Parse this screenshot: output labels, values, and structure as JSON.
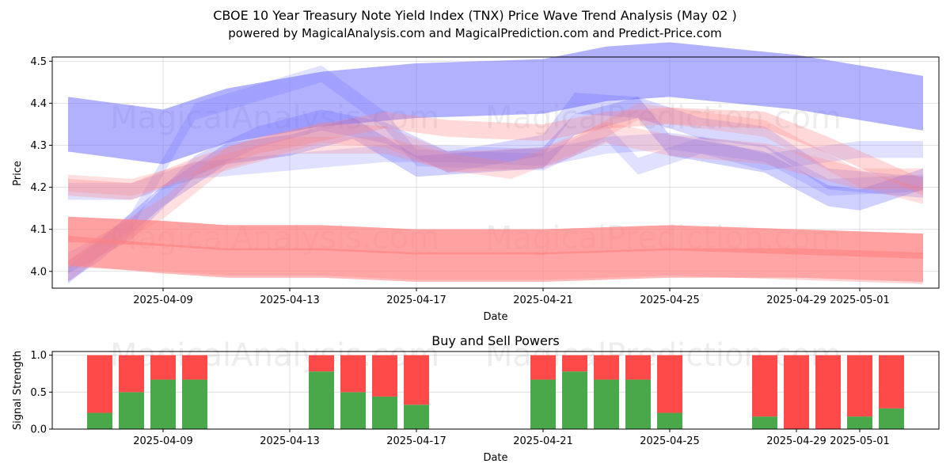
{
  "chart_data": [
    {
      "type": "area",
      "title": "CBOE 10 Year Treasury Note Yield Index (TNX) Price Wave Trend Analysis (May 02 )",
      "subtitle": "powered by MagicalAnalysis.com and MagicalPrediction.com and Predict-Price.com",
      "xlabel": "Date",
      "ylabel": "Price",
      "xlim": [
        "2025-04-05T12",
        "2025-05-03T12"
      ],
      "ylim": [
        3.96,
        4.51
      ],
      "grid": true,
      "x_ticks": [
        "2025-04-09",
        "2025-04-13",
        "2025-04-17",
        "2025-04-21",
        "2025-04-25",
        "2025-04-29",
        "2025-05-01"
      ],
      "y_ticks": [
        "4.0",
        "4.1",
        "4.2",
        "4.3",
        "4.4",
        "4.5"
      ],
      "watermarks": [
        "MagicalAnalysis.com",
        "MagicalPrediction.com",
        "MagicalAnalysis.com",
        "MagicalPrediction.com"
      ],
      "series": [
        {
          "name": "blue-wave-upper",
          "color": "#6464ff",
          "opacity": 0.5,
          "width": 0.13,
          "x": [
            "2025-04-06",
            "2025-04-08",
            "2025-04-09",
            "2025-04-11",
            "2025-04-14",
            "2025-04-17",
            "2025-04-21",
            "2025-04-23",
            "2025-04-25",
            "2025-04-29",
            "2025-05-03"
          ],
          "y": [
            4.35,
            4.33,
            4.32,
            4.37,
            4.41,
            4.43,
            4.44,
            4.47,
            4.48,
            4.45,
            4.4
          ]
        },
        {
          "name": "blue-wave-mid",
          "color": "#6464ff",
          "opacity": 0.3,
          "width": 0.05,
          "x": [
            "2025-04-06",
            "2025-04-07",
            "2025-04-09",
            "2025-04-11",
            "2025-04-13",
            "2025-04-15",
            "2025-04-17",
            "2025-04-19",
            "2025-04-21",
            "2025-04-22",
            "2025-04-24",
            "2025-04-25",
            "2025-04-28",
            "2025-04-30",
            "2025-05-01",
            "2025-05-03"
          ],
          "y": [
            4.0,
            4.05,
            4.18,
            4.28,
            4.3,
            4.34,
            4.25,
            4.26,
            4.27,
            4.35,
            4.39,
            4.3,
            4.26,
            4.18,
            4.17,
            4.22
          ]
        },
        {
          "name": "blue-wave-b",
          "color": "#6464ff",
          "opacity": 0.25,
          "width": 0.05,
          "x": [
            "2025-04-06",
            "2025-04-08",
            "2025-04-10",
            "2025-04-12",
            "2025-04-14",
            "2025-04-16",
            "2025-04-18",
            "2025-04-21",
            "2025-04-22",
            "2025-04-24",
            "2025-04-26",
            "2025-04-28",
            "2025-04-30",
            "2025-05-03"
          ],
          "y": [
            4.02,
            4.1,
            4.25,
            4.32,
            4.36,
            4.33,
            4.26,
            4.3,
            4.4,
            4.39,
            4.34,
            4.32,
            4.22,
            4.2
          ]
        },
        {
          "name": "blue-wave-c",
          "color": "#6464ff",
          "opacity": 0.2,
          "width": 0.04,
          "x": [
            "2025-04-06",
            "2025-04-08",
            "2025-04-10",
            "2025-04-14",
            "2025-04-16",
            "2025-04-17",
            "2025-04-21",
            "2025-04-23",
            "2025-04-24",
            "2025-04-26",
            "2025-04-28",
            "2025-05-01",
            "2025-05-03"
          ],
          "y": [
            3.99,
            4.12,
            4.38,
            4.47,
            4.36,
            4.27,
            4.26,
            4.33,
            4.25,
            4.3,
            4.26,
            4.29,
            4.29
          ]
        },
        {
          "name": "blue-wave-d",
          "color": "#6464ff",
          "opacity": 0.2,
          "width": 0.04,
          "x": [
            "2025-04-06",
            "2025-04-08",
            "2025-04-10",
            "2025-04-13",
            "2025-04-16",
            "2025-04-18",
            "2025-04-21",
            "2025-04-23",
            "2025-04-25",
            "2025-04-28",
            "2025-04-30",
            "2025-05-03"
          ],
          "y": [
            4.19,
            4.19,
            4.24,
            4.26,
            4.28,
            4.28,
            4.27,
            4.3,
            4.31,
            4.28,
            4.2,
            4.21
          ]
        },
        {
          "name": "red-wave-a",
          "color": "#ff8080",
          "opacity": 0.3,
          "width": 0.04,
          "x": [
            "2025-04-06",
            "2025-04-08",
            "2025-04-10",
            "2025-04-12",
            "2025-04-14",
            "2025-04-16",
            "2025-04-18",
            "2025-04-21",
            "2025-04-23",
            "2025-04-25",
            "2025-04-28",
            "2025-04-30",
            "2025-05-03"
          ],
          "y": [
            4.2,
            4.19,
            4.25,
            4.3,
            4.33,
            4.36,
            4.34,
            4.33,
            4.36,
            4.37,
            4.36,
            4.3,
            4.2
          ]
        },
        {
          "name": "red-wave-b",
          "color": "#ff8080",
          "opacity": 0.25,
          "width": 0.04,
          "x": [
            "2025-04-06",
            "2025-04-08",
            "2025-04-10",
            "2025-04-13",
            "2025-04-16",
            "2025-04-18",
            "2025-04-20",
            "2025-04-22",
            "2025-04-24",
            "2025-04-26",
            "2025-04-28",
            "2025-05-01",
            "2025-05-03"
          ],
          "y": [
            4.21,
            4.2,
            4.24,
            4.3,
            4.3,
            4.26,
            4.24,
            4.3,
            4.38,
            4.36,
            4.34,
            4.22,
            4.18
          ]
        },
        {
          "name": "red-wave-c",
          "color": "#ff8080",
          "opacity": 0.25,
          "width": 0.05,
          "x": [
            "2025-04-06",
            "2025-04-07",
            "2025-04-09",
            "2025-04-11",
            "2025-04-14",
            "2025-04-16",
            "2025-04-18",
            "2025-04-21",
            "2025-04-23",
            "2025-04-25",
            "2025-04-28",
            "2025-05-01",
            "2025-05-03"
          ],
          "y": [
            4.0,
            4.06,
            4.15,
            4.27,
            4.33,
            4.32,
            4.26,
            4.27,
            4.33,
            4.3,
            4.28,
            4.22,
            4.22
          ]
        },
        {
          "name": "red-band-upper",
          "color": "#ff8080",
          "opacity": 0.6,
          "width": 0.06,
          "x": [
            "2025-04-06",
            "2025-04-09",
            "2025-04-11",
            "2025-04-14",
            "2025-04-17",
            "2025-04-21",
            "2025-04-25",
            "2025-04-29",
            "2025-05-03"
          ],
          "y": [
            4.1,
            4.09,
            4.08,
            4.08,
            4.07,
            4.07,
            4.08,
            4.07,
            4.06
          ]
        },
        {
          "name": "red-band-lower",
          "color": "#ff8080",
          "opacity": 0.55,
          "width": 0.07,
          "x": [
            "2025-04-06",
            "2025-04-09",
            "2025-04-11",
            "2025-04-14",
            "2025-04-17",
            "2025-04-21",
            "2025-04-25",
            "2025-04-29",
            "2025-05-03"
          ],
          "y": [
            4.05,
            4.03,
            4.02,
            4.02,
            4.01,
            4.01,
            4.02,
            4.02,
            4.01
          ]
        },
        {
          "name": "red-band-wide",
          "color": "#ff8080",
          "opacity": 0.35,
          "width": 0.12,
          "x": [
            "2025-04-06",
            "2025-04-09",
            "2025-04-11",
            "2025-04-14",
            "2025-04-17",
            "2025-04-21",
            "2025-04-25",
            "2025-04-29",
            "2025-05-03"
          ],
          "y": [
            4.07,
            4.06,
            4.05,
            4.05,
            4.04,
            4.04,
            4.05,
            4.04,
            4.03
          ]
        }
      ]
    },
    {
      "type": "bar",
      "stacked": true,
      "title": "Buy and Sell Powers",
      "xlabel": "Date",
      "ylabel": "Signal Strength",
      "ylim": [
        0,
        1.05
      ],
      "y_ticks": [
        "0.0",
        "0.5",
        "1.0"
      ],
      "x_ticks": [
        "2025-04-09",
        "2025-04-13",
        "2025-04-17",
        "2025-04-21",
        "2025-04-25",
        "2025-04-29",
        "2025-05-01"
      ],
      "grid": true,
      "colors": {
        "buy": "#4aa74a",
        "sell": "#ff4a4a"
      },
      "categories": [
        "2025-04-07",
        "2025-04-08",
        "2025-04-09",
        "2025-04-10",
        "2025-04-14",
        "2025-04-15",
        "2025-04-16",
        "2025-04-17",
        "2025-04-21",
        "2025-04-22",
        "2025-04-23",
        "2025-04-24",
        "2025-04-25",
        "2025-04-28",
        "2025-04-29",
        "2025-04-30",
        "2025-05-01",
        "2025-05-02"
      ],
      "series": [
        {
          "name": "Buy",
          "values": [
            0.22,
            0.5,
            0.67,
            0.67,
            0.78,
            0.5,
            0.44,
            0.33,
            0.67,
            0.78,
            0.67,
            0.67,
            0.22,
            0.17,
            0.0,
            0.0,
            0.17,
            0.28
          ]
        },
        {
          "name": "Sell",
          "values": [
            0.78,
            0.5,
            0.33,
            0.33,
            0.22,
            0.5,
            0.56,
            0.67,
            0.33,
            0.22,
            0.33,
            0.33,
            0.78,
            0.83,
            1.0,
            1.0,
            0.83,
            0.72
          ]
        }
      ],
      "watermarks": [
        "MagicalAnalysis.com",
        "MagicalPrediction.com"
      ]
    }
  ]
}
